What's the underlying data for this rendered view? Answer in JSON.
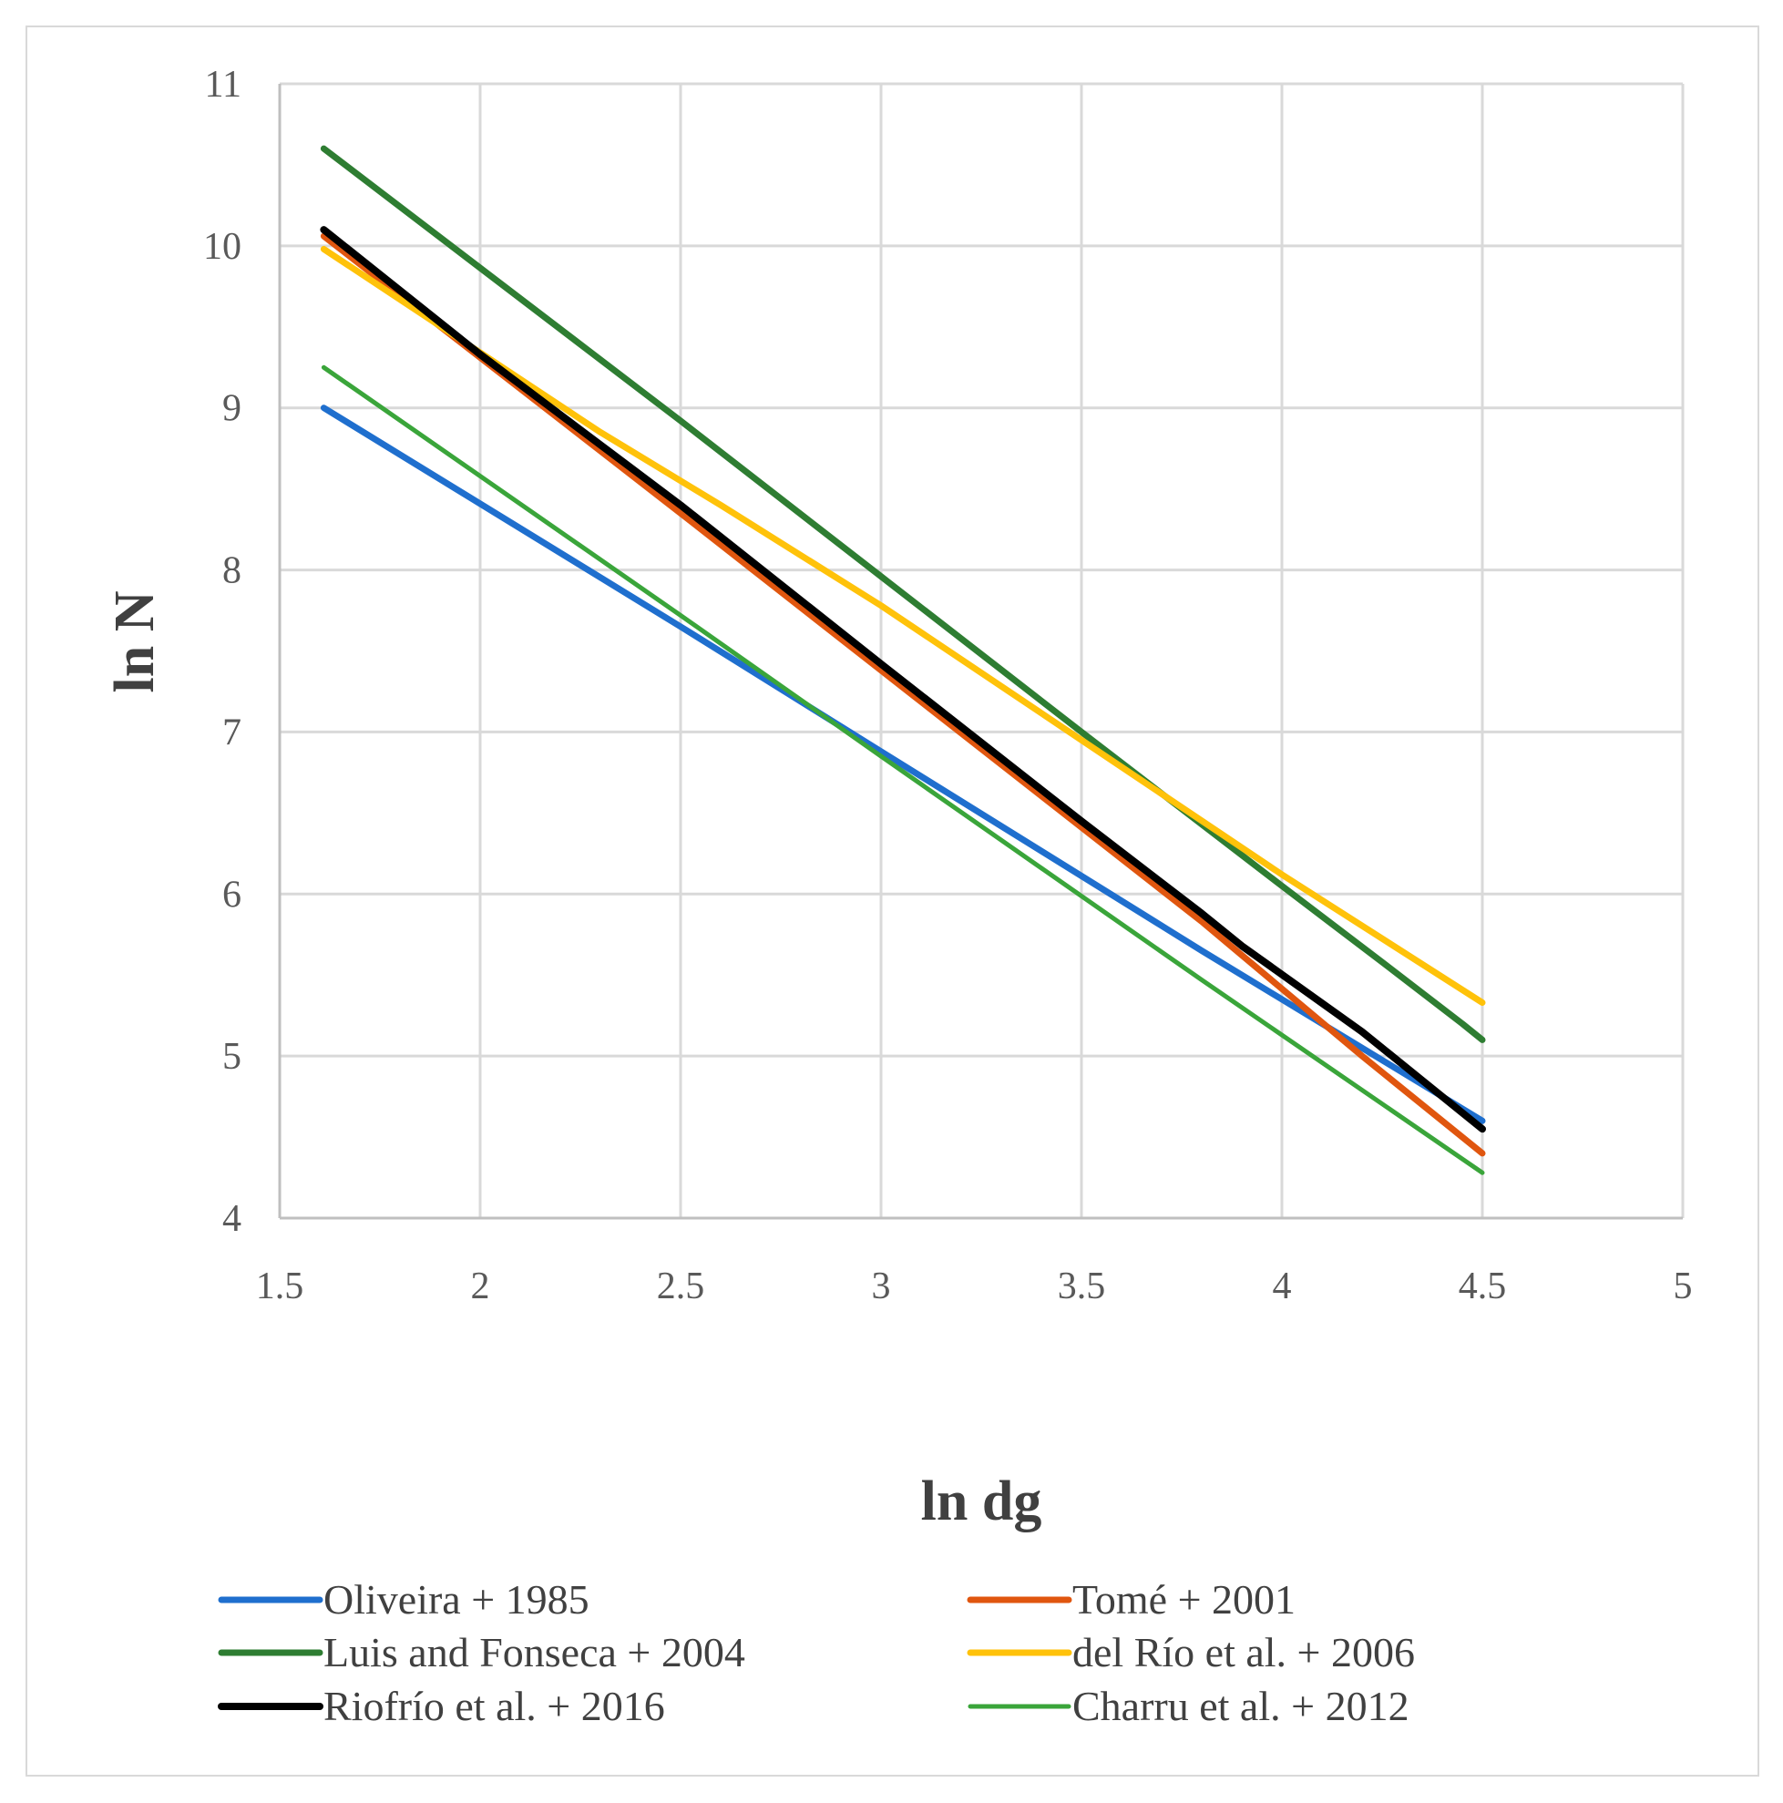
{
  "chart_data": {
    "type": "line",
    "title": "",
    "xlabel": "ln dg",
    "ylabel": "ln N",
    "xlim": [
      1.5,
      5
    ],
    "ylim": [
      4,
      11
    ],
    "xticks": [
      1.5,
      2,
      2.5,
      3,
      3.5,
      4,
      4.5,
      5
    ],
    "xtick_labels": [
      "1.5",
      "2",
      "2.5",
      "3",
      "3.5",
      "4",
      "4.5",
      "5"
    ],
    "yticks": [
      4,
      5,
      6,
      7,
      8,
      9,
      10,
      11
    ],
    "ytick_labels": [
      "4",
      "5",
      "6",
      "7",
      "8",
      "9",
      "10",
      "11"
    ],
    "grid": true,
    "legend_position": "bottom",
    "series": [
      {
        "name": "Oliveira + 1985",
        "color": "#1f6fce",
        "width": 7,
        "x": [
          1.61,
          2.5,
          3.0,
          3.8,
          4.5
        ],
        "y": [
          9.0,
          7.65,
          6.88,
          5.65,
          4.6
        ]
      },
      {
        "name": "Tomé + 2001",
        "color": "#e0560f",
        "width": 7,
        "x": [
          1.61,
          2.5,
          3.0,
          3.8,
          4.2,
          4.5
        ],
        "y": [
          10.06,
          8.35,
          7.38,
          5.83,
          5.0,
          4.4
        ]
      },
      {
        "name": "Luis and Fonseca + 2004",
        "color": "#2e7d32",
        "width": 7,
        "x": [
          1.61,
          2.5,
          3.0,
          3.5,
          4.0,
          4.25,
          4.45,
          4.5
        ],
        "y": [
          10.6,
          8.92,
          7.96,
          7.0,
          6.05,
          5.58,
          5.2,
          5.1
        ]
      },
      {
        "name": "del Río et al. + 2006",
        "color": "#ffc20a",
        "width": 7,
        "x": [
          1.61,
          2.3,
          2.6,
          3.0,
          3.5,
          4.0,
          4.5
        ],
        "y": [
          9.98,
          8.85,
          8.4,
          7.78,
          6.95,
          6.12,
          5.33
        ]
      },
      {
        "name": "Riofrío et al. + 2016",
        "color": "#000000",
        "width": 8,
        "x": [
          1.61,
          2.0,
          2.5,
          3.0,
          3.5,
          3.8,
          3.9,
          4.2,
          4.35,
          4.5
        ],
        "y": [
          10.1,
          9.33,
          8.4,
          7.42,
          6.45,
          5.88,
          5.68,
          5.15,
          4.85,
          4.55
        ]
      },
      {
        "name": "Charru et al. + 2012",
        "color": "#3aa53a",
        "width": 5,
        "x": [
          1.61,
          2.5,
          3.0,
          3.8,
          4.5
        ],
        "y": [
          9.25,
          7.72,
          6.85,
          5.47,
          4.28
        ]
      }
    ]
  }
}
